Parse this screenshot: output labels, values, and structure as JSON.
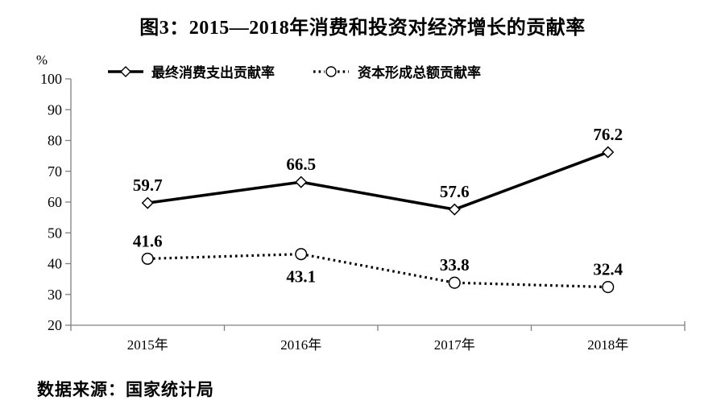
{
  "chart_data": {
    "type": "line",
    "title": "图3：2015—2018年消费和投资对经济增长的贡献率",
    "unit_label": "%",
    "categories": [
      "2015年",
      "2016年",
      "2017年",
      "2018年"
    ],
    "series": [
      {
        "name": "最终消费支出贡献率",
        "values": [
          59.7,
          66.5,
          57.6,
          76.2
        ],
        "line": "solid",
        "marker": "diamond",
        "label_positions": [
          "above",
          "above",
          "above",
          "above"
        ]
      },
      {
        "name": "资本形成总额贡献率",
        "values": [
          41.6,
          43.1,
          33.8,
          32.4
        ],
        "line": "dotted",
        "marker": "circle",
        "label_positions": [
          "above",
          "below",
          "above",
          "above"
        ]
      }
    ],
    "ylim": [
      20,
      100
    ],
    "yticks": [
      20,
      30,
      40,
      50,
      60,
      70,
      80,
      90,
      100
    ],
    "grid": "off",
    "legend_position": "top",
    "colors": {
      "line": "#000000",
      "axis": "#808080",
      "text": "#000000",
      "marker_fill": "#ffffff"
    },
    "source": "数据来源：国家统计局"
  }
}
